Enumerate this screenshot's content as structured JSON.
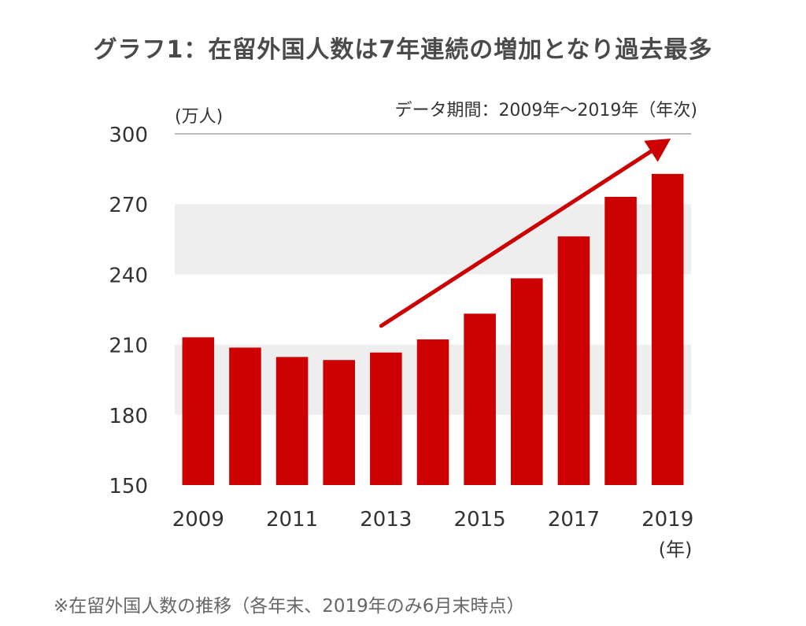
{
  "title": "グラフ1：在留外国人数は7年連続の増加となり過去最多",
  "footnote": "※在留外国人数の推移（各年末、2019年のみ6月末時点）",
  "colors": {
    "bar": "#cc0000",
    "arrow": "#cc0000",
    "band": "#eeeeee",
    "gridline": "#bbbbbb",
    "text": "#333333"
  },
  "chart_data": {
    "type": "bar",
    "title": "グラフ1：在留外国人数は7年連続の増加となり過去最多",
    "unit_label": "(万人)",
    "period_label": "データ期間：2009年〜2019年（年次)",
    "xlabel": "(年)",
    "ylabel": "(万人)",
    "ylim": [
      150,
      300
    ],
    "yticks": [
      "150",
      "180",
      "210",
      "240",
      "270",
      "300"
    ],
    "ytick_values": [
      150,
      180,
      210,
      240,
      270,
      300
    ],
    "bands": [
      [
        180,
        210
      ],
      [
        240,
        270
      ]
    ],
    "categories": [
      "2009",
      "2010",
      "2011",
      "2012",
      "2013",
      "2014",
      "2015",
      "2016",
      "2017",
      "2018",
      "2019"
    ],
    "xtick_labels": [
      "2009",
      "",
      "2011",
      "",
      "2013",
      "",
      "2015",
      "",
      "2017",
      "",
      "2019"
    ],
    "values": [
      213.1,
      208.7,
      204.7,
      203.4,
      206.6,
      212.2,
      223.2,
      238.3,
      256.2,
      273.1,
      282.9
    ],
    "trend_arrow": {
      "from_year": "2013",
      "from_value": 218,
      "to_year": "2019",
      "to_value": 298
    }
  }
}
